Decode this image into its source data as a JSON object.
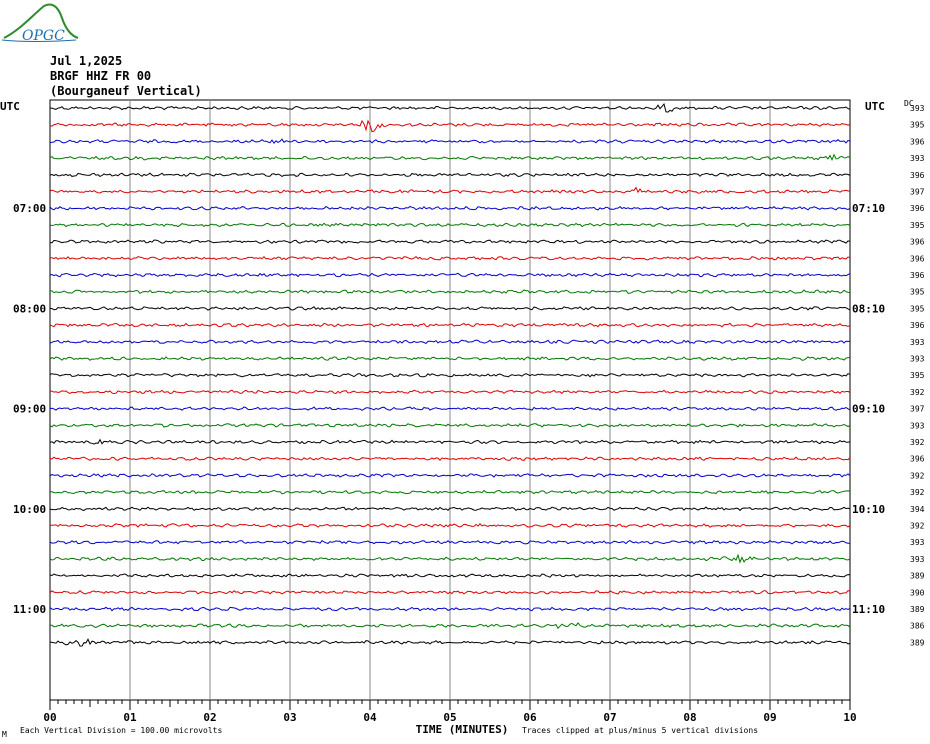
{
  "logo": {
    "text": "OPGC",
    "color": "#1a6fb0",
    "swoosh_color": "#2e8b2e"
  },
  "header": {
    "date": "Jul 1,2025",
    "station": "BRGF HHZ FR 00",
    "description": "(Bourganeuf Vertical)"
  },
  "chart_data": {
    "type": "line",
    "title": "",
    "xlabel": "TIME (MINUTES)",
    "x_ticks": [
      "00",
      "01",
      "02",
      "03",
      "04",
      "05",
      "06",
      "07",
      "08",
      "09",
      "10"
    ],
    "xlim": [
      0,
      10
    ],
    "left_axis_label": "UTC",
    "right_axis_label": "UTC",
    "dc_label": "DC",
    "left_hour_labels": [
      "07:00",
      "08:00",
      "09:00",
      "10:00",
      "11:00"
    ],
    "right_hour_labels": [
      "07:10",
      "08:10",
      "09:10",
      "10:10",
      "11:10"
    ],
    "trace_colors": [
      "#000000",
      "#dd0000",
      "#0000cc",
      "#007700"
    ],
    "dc_offsets": [
      "393",
      "395",
      "396",
      "393",
      "396",
      "397",
      "396",
      "395",
      "396",
      "396",
      "396",
      "395",
      "395",
      "396",
      "393",
      "393",
      "395",
      "392",
      "397",
      "393",
      "392",
      "396",
      "392",
      "392",
      "394",
      "392",
      "393",
      "393",
      "389",
      "390",
      "389",
      "386",
      "389"
    ],
    "events": [
      {
        "row": 0,
        "x": 7.7,
        "amp": 1.6
      },
      {
        "row": 1,
        "x": 4.0,
        "amp": 3.0
      },
      {
        "row": 2,
        "x": 2.8,
        "amp": 1.2
      },
      {
        "row": 3,
        "x": 9.8,
        "amp": 1.4
      },
      {
        "row": 5,
        "x": 7.3,
        "amp": 2.0
      },
      {
        "row": 20,
        "x": 0.6,
        "amp": 1.4
      },
      {
        "row": 27,
        "x": 8.6,
        "amp": 1.8
      },
      {
        "row": 31,
        "x": 6.5,
        "amp": 1.2
      },
      {
        "row": 32,
        "x": 0.4,
        "amp": 1.6
      }
    ],
    "footer_left": "Each Vertical Division =  100.00 microvolts",
    "footer_right": "Traces clipped at plus/minus 5 vertical divisions",
    "corner_mark": "M"
  }
}
